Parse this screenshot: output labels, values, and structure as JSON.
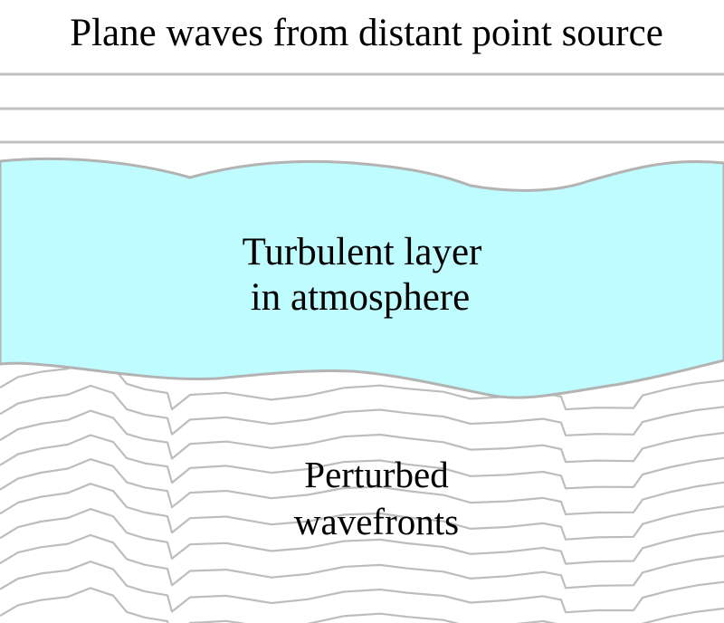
{
  "diagram": {
    "title": "Plane waves from distant point source",
    "layer": {
      "line1": "Turbulent layer",
      "line2": "in atmosphere",
      "fill": "#bffcff"
    },
    "wavefronts": {
      "line1": "Perturbed",
      "line2": "wavefronts"
    },
    "line_color": "#c0c0c0"
  }
}
